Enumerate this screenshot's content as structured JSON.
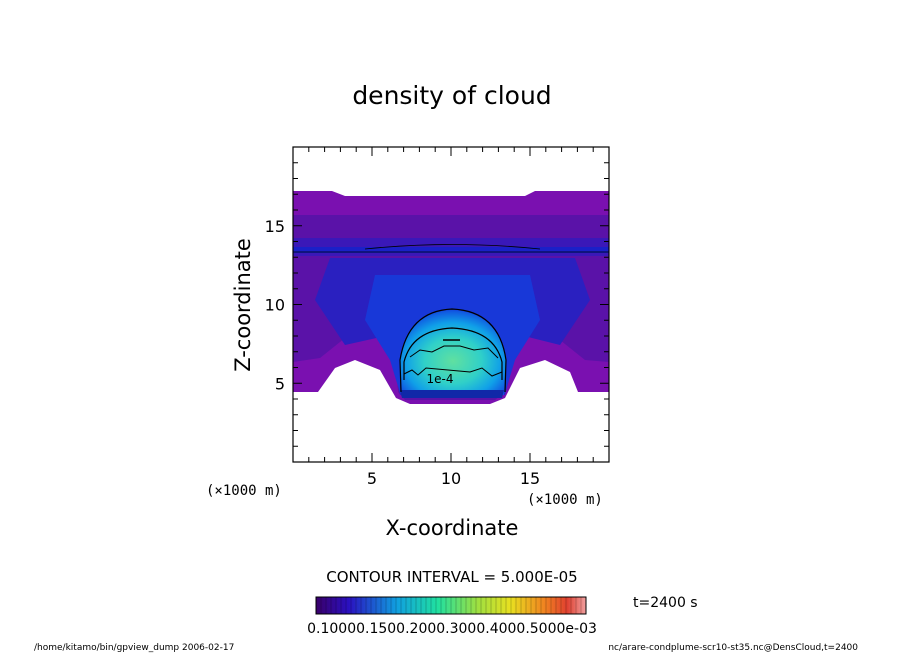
{
  "chart_data": {
    "type": "heatmap",
    "title": "density of cloud",
    "xlabel": "X-coordinate",
    "ylabel": "Z-coordinate",
    "x_unit": "(×1000 m)",
    "y_unit": "(×1000 m)",
    "xlim": [
      0,
      20
    ],
    "ylim": [
      0,
      20
    ],
    "x_ticks": [
      5,
      10,
      15
    ],
    "y_ticks": [
      5,
      10,
      15
    ],
    "contour_label": "1e-4",
    "contour_interval": "CONTOUR INTERVAL = 5.000E-05",
    "time_label": "t=2400 s",
    "colorbar_labels": [
      "0.1000e-03",
      "0.1500e-03",
      "0.2000e-03",
      "0.3000e-03",
      "0.4000e-03",
      "0.5000e-03"
    ],
    "colorbar_text": "0.10000.1500.2000.3000.4000.5000e-03",
    "colors": [
      "#4a0080",
      "#5a10a0",
      "#2a18b8",
      "#1a2ad0",
      "#1060e0",
      "#10a0e0",
      "#20d8c8",
      "#40e080",
      "#a0e040",
      "#e0e020",
      "#f0a020",
      "#e04020",
      "#f08080"
    ]
  },
  "footer": {
    "left": "/home/kitamo/bin/gpview_dump  2006-02-17",
    "right": "nc/arare-condplume-scr10-st35.nc@DensCloud,t=2400"
  }
}
